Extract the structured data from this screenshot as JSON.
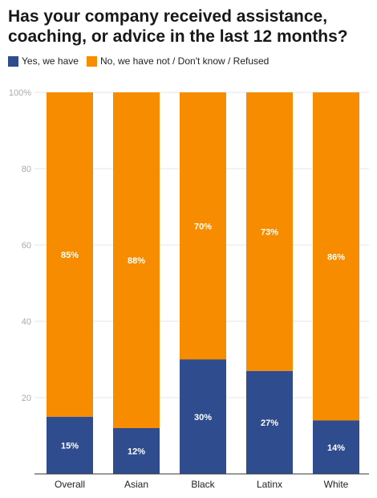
{
  "chart_data": {
    "type": "bar",
    "stacked": true,
    "title": "Has your company received assistance, coaching, or advice in the last 12 months?",
    "categories": [
      "Overall",
      "Asian",
      "Black",
      "Latinx",
      "White"
    ],
    "series": [
      {
        "name": "Yes, we have",
        "values": [
          15,
          12,
          30,
          27,
          14
        ],
        "labels": [
          "15%",
          "12%",
          "30%",
          "27%",
          "14%"
        ],
        "color": "#2f4c8f"
      },
      {
        "name": "No, we have not / Don't know / Refused",
        "values": [
          85,
          88,
          70,
          73,
          86
        ],
        "labels": [
          "85%",
          "88%",
          "70%",
          "73%",
          "86%"
        ],
        "color": "#f88c00"
      }
    ],
    "ylim": [
      0,
      100
    ],
    "yticks": [
      0,
      20,
      40,
      60,
      80,
      100
    ],
    "ytick_labels": [
      "",
      "20",
      "40",
      "60",
      "80",
      "100%"
    ],
    "legend_position": "top-left",
    "grid": true
  }
}
